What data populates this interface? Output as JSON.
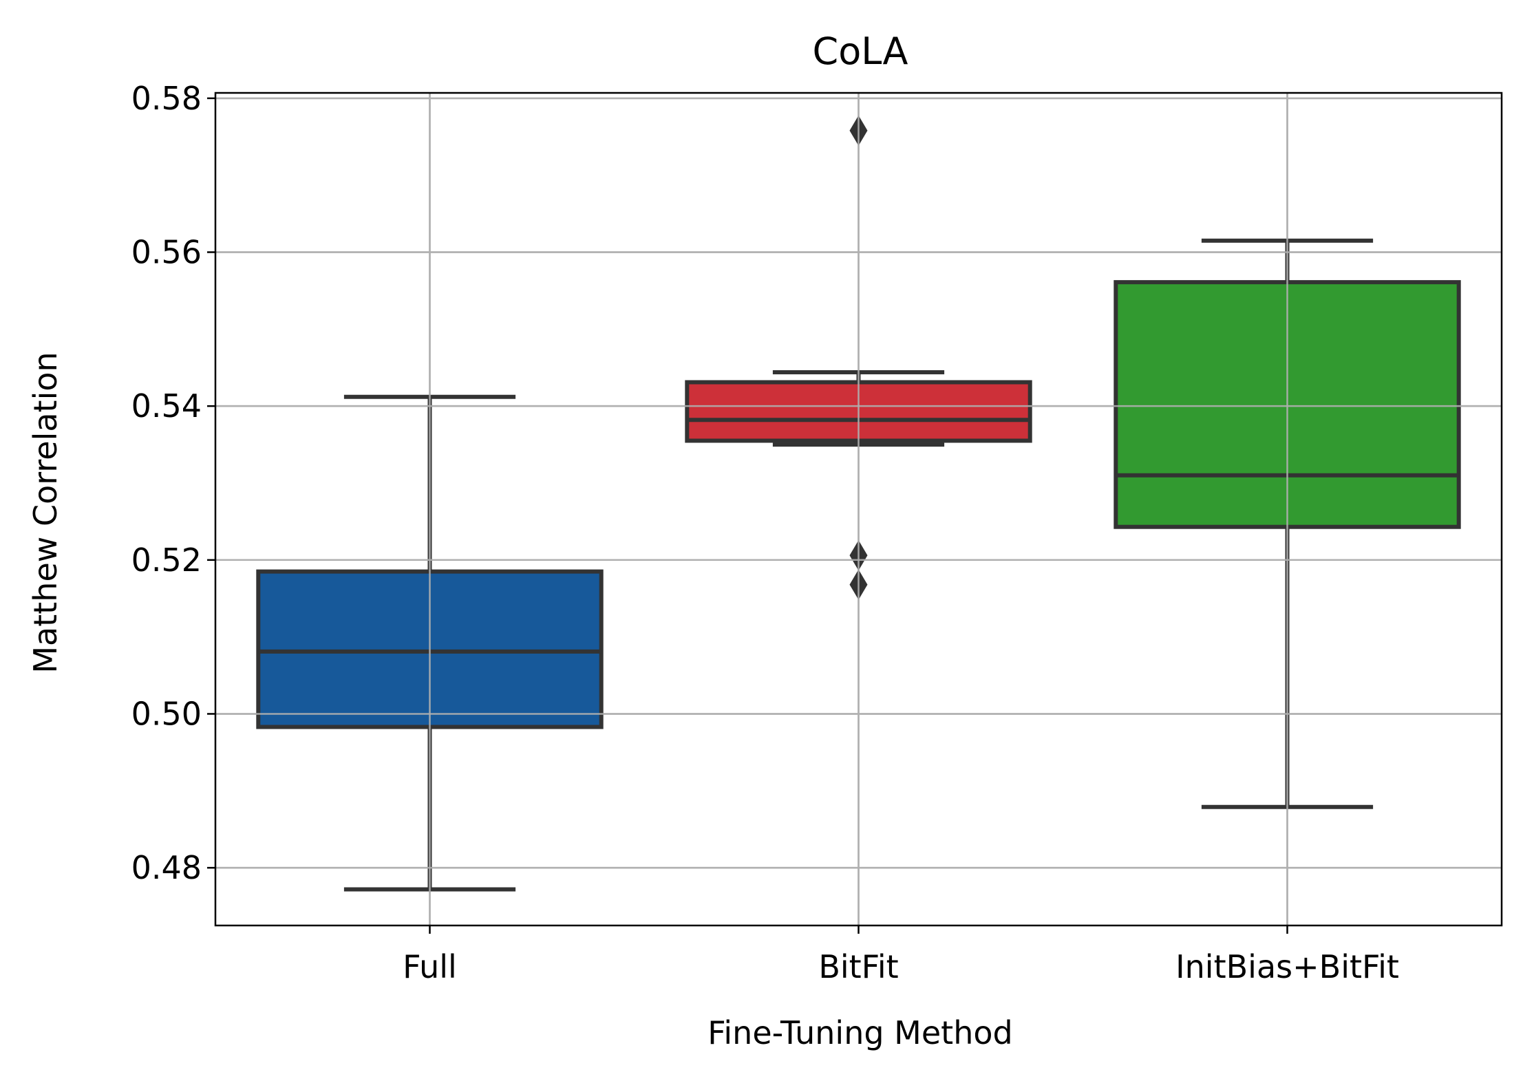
{
  "chart_data": {
    "type": "box",
    "title": "CoLA",
    "xlabel": "Fine-Tuning Method",
    "ylabel": "Matthew Correlation",
    "ylim": [
      0.4725,
      0.5807
    ],
    "yticks": [
      0.48,
      0.5,
      0.52,
      0.54,
      0.56,
      0.58
    ],
    "ytick_labels": [
      "0.48",
      "0.50",
      "0.52",
      "0.54",
      "0.56",
      "0.58"
    ],
    "grid": true,
    "categories": [
      "Full",
      "BitFit",
      "InitBias+BitFit"
    ],
    "boxes": [
      {
        "category": "Full",
        "color": "#17599a",
        "whisker_low": 0.4772,
        "q1": 0.4983,
        "median": 0.5081,
        "q3": 0.5185,
        "whisker_high": 0.5412,
        "outliers": []
      },
      {
        "category": "BitFit",
        "color": "#cd3039",
        "whisker_low": 0.535,
        "q1": 0.5355,
        "median": 0.5382,
        "q3": 0.5431,
        "whisker_high": 0.5444,
        "outliers": [
          0.5758,
          0.5206,
          0.5168
        ]
      },
      {
        "category": "InitBias+BitFit",
        "color": "#329a30",
        "whisker_low": 0.4879,
        "q1": 0.5243,
        "median": 0.531,
        "q3": 0.5561,
        "whisker_high": 0.5615,
        "outliers": []
      }
    ],
    "style": {
      "edge_color": "#333333",
      "grid_color": "#b0b0b0",
      "axis_color": "#000000"
    }
  }
}
